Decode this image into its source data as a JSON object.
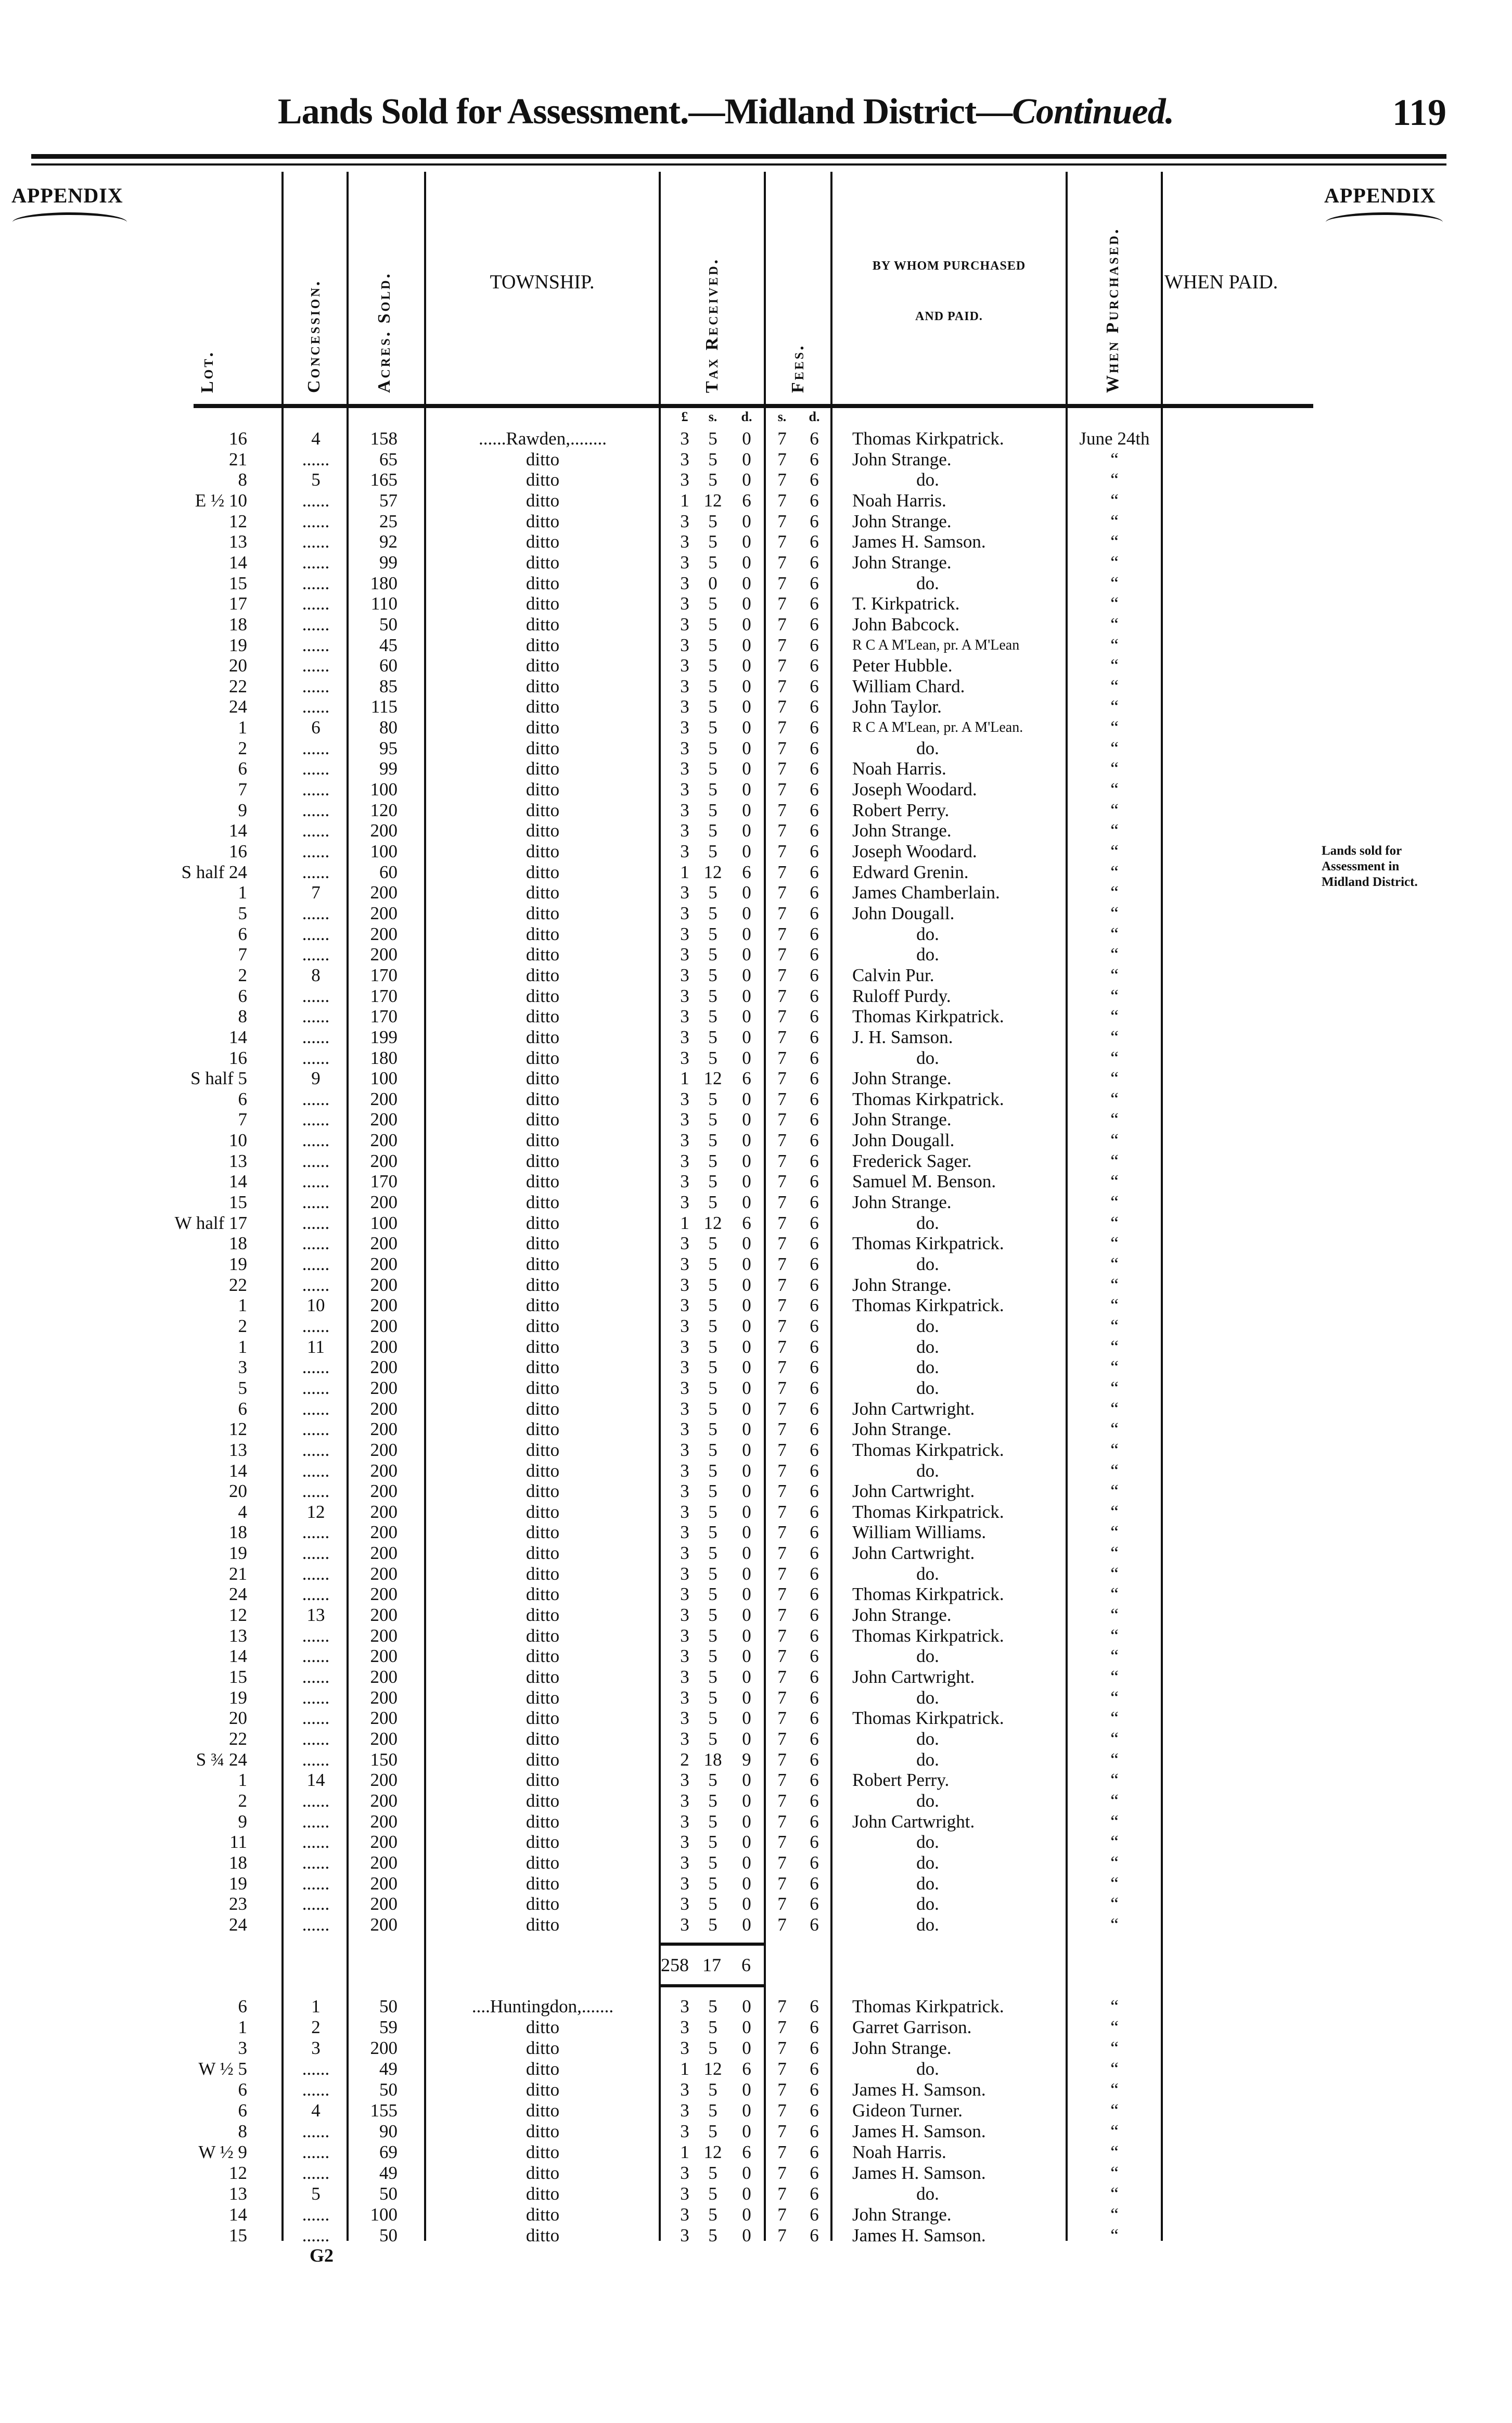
{
  "header": {
    "title_main": "Lands Sold for Assessment.—Midland District—",
    "title_italic": "Continued.",
    "page_number": "119",
    "appendix_left": "APPENDIX",
    "appendix_right": "APPENDIX"
  },
  "side_note": [
    "Lands sold for",
    "Assessment in",
    "Midland District."
  ],
  "columns": {
    "lot": "Lot.",
    "concession": "Concession.",
    "acres": "Acres. Sold.",
    "township": "TOWNSHIP.",
    "tax": "Tax Received.",
    "fees": "Fees.",
    "purchaser_line1": "BY WHOM PURCHASED",
    "purchaser_line2": "AND PAID.",
    "when_purchased": "When Purchased.",
    "when_paid": "WHEN PAID."
  },
  "units": {
    "pounds": "£",
    "shillings": "s.",
    "pence": "d.",
    "fees_s": "s.",
    "fees_d": "d."
  },
  "rawden_rows": [
    [
      "16",
      "4",
      "158",
      "......Rawden,........",
      "3",
      "5",
      "0",
      "7",
      "6",
      "Thomas Kirkpatrick.",
      "June 24th"
    ],
    [
      "21",
      "......",
      "65",
      "ditto",
      "3",
      "5",
      "0",
      "7",
      "6",
      "John Strange.",
      "“"
    ],
    [
      "8",
      "5",
      "165",
      "ditto",
      "3",
      "5",
      "0",
      "7",
      "6",
      "do.",
      "“"
    ],
    [
      "E ½ 10",
      "......",
      "57",
      "ditto",
      "1",
      "12",
      "6",
      "7",
      "6",
      "Noah Harris.",
      "“"
    ],
    [
      "12",
      "......",
      "25",
      "ditto",
      "3",
      "5",
      "0",
      "7",
      "6",
      "John Strange.",
      "“"
    ],
    [
      "13",
      "......",
      "92",
      "ditto",
      "3",
      "5",
      "0",
      "7",
      "6",
      "James H. Samson.",
      "“"
    ],
    [
      "14",
      "......",
      "99",
      "ditto",
      "3",
      "5",
      "0",
      "7",
      "6",
      "John Strange.",
      "“"
    ],
    [
      "15",
      "......",
      "180",
      "ditto",
      "3",
      "0",
      "0",
      "7",
      "6",
      "do.",
      "“"
    ],
    [
      "17",
      "......",
      "110",
      "ditto",
      "3",
      "5",
      "0",
      "7",
      "6",
      "T. Kirkpatrick.",
      "“"
    ],
    [
      "18",
      "......",
      "50",
      "ditto",
      "3",
      "5",
      "0",
      "7",
      "6",
      "John Babcock.",
      "“"
    ],
    [
      "19",
      "......",
      "45",
      "ditto",
      "3",
      "5",
      "0",
      "7",
      "6",
      "R C A M'Lean, pr. A M'Lean",
      "“"
    ],
    [
      "20",
      "......",
      "60",
      "ditto",
      "3",
      "5",
      "0",
      "7",
      "6",
      "Peter Hubble.",
      "“"
    ],
    [
      "22",
      "......",
      "85",
      "ditto",
      "3",
      "5",
      "0",
      "7",
      "6",
      "William Chard.",
      "“"
    ],
    [
      "24",
      "......",
      "115",
      "ditto",
      "3",
      "5",
      "0",
      "7",
      "6",
      "John Taylor.",
      "“"
    ],
    [
      "1",
      "6",
      "80",
      "ditto",
      "3",
      "5",
      "0",
      "7",
      "6",
      "R C A M'Lean, pr. A M'Lean.",
      "“"
    ],
    [
      "2",
      "......",
      "95",
      "ditto",
      "3",
      "5",
      "0",
      "7",
      "6",
      "do.",
      "“"
    ],
    [
      "6",
      "......",
      "99",
      "ditto",
      "3",
      "5",
      "0",
      "7",
      "6",
      "Noah Harris.",
      "“"
    ],
    [
      "7",
      "......",
      "100",
      "ditto",
      "3",
      "5",
      "0",
      "7",
      "6",
      "Joseph Woodard.",
      "“"
    ],
    [
      "9",
      "......",
      "120",
      "ditto",
      "3",
      "5",
      "0",
      "7",
      "6",
      "Robert Perry.",
      "“"
    ],
    [
      "14",
      "......",
      "200",
      "ditto",
      "3",
      "5",
      "0",
      "7",
      "6",
      "John Strange.",
      "“"
    ],
    [
      "16",
      "......",
      "100",
      "ditto",
      "3",
      "5",
      "0",
      "7",
      "6",
      "Joseph Woodard.",
      "“"
    ],
    [
      "S half 24",
      "......",
      "60",
      "ditto",
      "1",
      "12",
      "6",
      "7",
      "6",
      "Edward Grenin.",
      "“"
    ],
    [
      "1",
      "7",
      "200",
      "ditto",
      "3",
      "5",
      "0",
      "7",
      "6",
      "James Chamberlain.",
      "“"
    ],
    [
      "5",
      "......",
      "200",
      "ditto",
      "3",
      "5",
      "0",
      "7",
      "6",
      "John Dougall.",
      "“"
    ],
    [
      "6",
      "......",
      "200",
      "ditto",
      "3",
      "5",
      "0",
      "7",
      "6",
      "do.",
      "“"
    ],
    [
      "7",
      "......",
      "200",
      "ditto",
      "3",
      "5",
      "0",
      "7",
      "6",
      "do.",
      "“"
    ],
    [
      "2",
      "8",
      "170",
      "ditto",
      "3",
      "5",
      "0",
      "7",
      "6",
      "Calvin Pur.",
      "“"
    ],
    [
      "6",
      "......",
      "170",
      "ditto",
      "3",
      "5",
      "0",
      "7",
      "6",
      "Ruloff Purdy.",
      "“"
    ],
    [
      "8",
      "......",
      "170",
      "ditto",
      "3",
      "5",
      "0",
      "7",
      "6",
      "Thomas Kirkpatrick.",
      "“"
    ],
    [
      "14",
      "......",
      "199",
      "ditto",
      "3",
      "5",
      "0",
      "7",
      "6",
      "J. H. Samson.",
      "“"
    ],
    [
      "16",
      "......",
      "180",
      "ditto",
      "3",
      "5",
      "0",
      "7",
      "6",
      "do.",
      "“"
    ],
    [
      "S half 5",
      "9",
      "100",
      "ditto",
      "1",
      "12",
      "6",
      "7",
      "6",
      "John Strange.",
      "“"
    ],
    [
      "6",
      "......",
      "200",
      "ditto",
      "3",
      "5",
      "0",
      "7",
      "6",
      "Thomas Kirkpatrick.",
      "“"
    ],
    [
      "7",
      "......",
      "200",
      "ditto",
      "3",
      "5",
      "0",
      "7",
      "6",
      "John Strange.",
      "“"
    ],
    [
      "10",
      "......",
      "200",
      "ditto",
      "3",
      "5",
      "0",
      "7",
      "6",
      "John Dougall.",
      "“"
    ],
    [
      "13",
      "......",
      "200",
      "ditto",
      "3",
      "5",
      "0",
      "7",
      "6",
      "Frederick Sager.",
      "“"
    ],
    [
      "14",
      "......",
      "170",
      "ditto",
      "3",
      "5",
      "0",
      "7",
      "6",
      "Samuel M. Benson.",
      "“"
    ],
    [
      "15",
      "......",
      "200",
      "ditto",
      "3",
      "5",
      "0",
      "7",
      "6",
      "John Strange.",
      "“"
    ],
    [
      "W half 17",
      "......",
      "100",
      "ditto",
      "1",
      "12",
      "6",
      "7",
      "6",
      "do.",
      "“"
    ],
    [
      "18",
      "......",
      "200",
      "ditto",
      "3",
      "5",
      "0",
      "7",
      "6",
      "Thomas Kirkpatrick.",
      "“"
    ],
    [
      "19",
      "......",
      "200",
      "ditto",
      "3",
      "5",
      "0",
      "7",
      "6",
      "do.",
      "“"
    ],
    [
      "22",
      "......",
      "200",
      "ditto",
      "3",
      "5",
      "0",
      "7",
      "6",
      "John Strange.",
      "“"
    ],
    [
      "1",
      "10",
      "200",
      "ditto",
      "3",
      "5",
      "0",
      "7",
      "6",
      "Thomas Kirkpatrick.",
      "“"
    ],
    [
      "2",
      "......",
      "200",
      "ditto",
      "3",
      "5",
      "0",
      "7",
      "6",
      "do.",
      "“"
    ],
    [
      "1",
      "11",
      "200",
      "ditto",
      "3",
      "5",
      "0",
      "7",
      "6",
      "do.",
      "“"
    ],
    [
      "3",
      "......",
      "200",
      "ditto",
      "3",
      "5",
      "0",
      "7",
      "6",
      "do.",
      "“"
    ],
    [
      "5",
      "......",
      "200",
      "ditto",
      "3",
      "5",
      "0",
      "7",
      "6",
      "do.",
      "“"
    ],
    [
      "6",
      "......",
      "200",
      "ditto",
      "3",
      "5",
      "0",
      "7",
      "6",
      "John Cartwright.",
      "“"
    ],
    [
      "12",
      "......",
      "200",
      "ditto",
      "3",
      "5",
      "0",
      "7",
      "6",
      "John Strange.",
      "“"
    ],
    [
      "13",
      "......",
      "200",
      "ditto",
      "3",
      "5",
      "0",
      "7",
      "6",
      "Thomas Kirkpatrick.",
      "“"
    ],
    [
      "14",
      "......",
      "200",
      "ditto",
      "3",
      "5",
      "0",
      "7",
      "6",
      "do.",
      "“"
    ],
    [
      "20",
      "......",
      "200",
      "ditto",
      "3",
      "5",
      "0",
      "7",
      "6",
      "John Cartwright.",
      "“"
    ],
    [
      "4",
      "12",
      "200",
      "ditto",
      "3",
      "5",
      "0",
      "7",
      "6",
      "Thomas Kirkpatrick.",
      "“"
    ],
    [
      "18",
      "......",
      "200",
      "ditto",
      "3",
      "5",
      "0",
      "7",
      "6",
      "William Williams.",
      "“"
    ],
    [
      "19",
      "......",
      "200",
      "ditto",
      "3",
      "5",
      "0",
      "7",
      "6",
      "John Cartwright.",
      "“"
    ],
    [
      "21",
      "......",
      "200",
      "ditto",
      "3",
      "5",
      "0",
      "7",
      "6",
      "do.",
      "“"
    ],
    [
      "24",
      "......",
      "200",
      "ditto",
      "3",
      "5",
      "0",
      "7",
      "6",
      "Thomas Kirkpatrick.",
      "“"
    ],
    [
      "12",
      "13",
      "200",
      "ditto",
      "3",
      "5",
      "0",
      "7",
      "6",
      "John Strange.",
      "“"
    ],
    [
      "13",
      "......",
      "200",
      "ditto",
      "3",
      "5",
      "0",
      "7",
      "6",
      "Thomas Kirkpatrick.",
      "“"
    ],
    [
      "14",
      "......",
      "200",
      "ditto",
      "3",
      "5",
      "0",
      "7",
      "6",
      "do.",
      "“"
    ],
    [
      "15",
      "......",
      "200",
      "ditto",
      "3",
      "5",
      "0",
      "7",
      "6",
      "John Cartwright.",
      "“"
    ],
    [
      "19",
      "......",
      "200",
      "ditto",
      "3",
      "5",
      "0",
      "7",
      "6",
      "do.",
      "“"
    ],
    [
      "20",
      "......",
      "200",
      "ditto",
      "3",
      "5",
      "0",
      "7",
      "6",
      "Thomas Kirkpatrick.",
      "“"
    ],
    [
      "22",
      "......",
      "200",
      "ditto",
      "3",
      "5",
      "0",
      "7",
      "6",
      "do.",
      "“"
    ],
    [
      "S ¾ 24",
      "......",
      "150",
      "ditto",
      "2",
      "18",
      "9",
      "7",
      "6",
      "do.",
      "“"
    ],
    [
      "1",
      "14",
      "200",
      "ditto",
      "3",
      "5",
      "0",
      "7",
      "6",
      "Robert Perry.",
      "“"
    ],
    [
      "2",
      "......",
      "200",
      "ditto",
      "3",
      "5",
      "0",
      "7",
      "6",
      "do.",
      "“"
    ],
    [
      "9",
      "......",
      "200",
      "ditto",
      "3",
      "5",
      "0",
      "7",
      "6",
      "John Cartwright.",
      "“"
    ],
    [
      "11",
      "......",
      "200",
      "ditto",
      "3",
      "5",
      "0",
      "7",
      "6",
      "do.",
      "“"
    ],
    [
      "18",
      "......",
      "200",
      "ditto",
      "3",
      "5",
      "0",
      "7",
      "6",
      "do.",
      "“"
    ],
    [
      "19",
      "......",
      "200",
      "ditto",
      "3",
      "5",
      "0",
      "7",
      "6",
      "do.",
      "“"
    ],
    [
      "23",
      "......",
      "200",
      "ditto",
      "3",
      "5",
      "0",
      "7",
      "6",
      "do.",
      "“"
    ],
    [
      "24",
      "......",
      "200",
      "ditto",
      "3",
      "5",
      "0",
      "7",
      "6",
      "do.",
      "“"
    ]
  ],
  "rawden_total": {
    "pounds": "258",
    "shillings": "17",
    "pence": "6"
  },
  "huntingdon_rows": [
    [
      "6",
      "1",
      "50",
      "....Huntingdon,.......",
      "3",
      "5",
      "0",
      "7",
      "6",
      "Thomas Kirkpatrick.",
      "“"
    ],
    [
      "1",
      "2",
      "59",
      "ditto",
      "3",
      "5",
      "0",
      "7",
      "6",
      "Garret Garrison.",
      "“"
    ],
    [
      "3",
      "3",
      "200",
      "ditto",
      "3",
      "5",
      "0",
      "7",
      "6",
      "John Strange.",
      "“"
    ],
    [
      "W ½ 5",
      "......",
      "49",
      "ditto",
      "1",
      "12",
      "6",
      "7",
      "6",
      "do.",
      "“"
    ],
    [
      "6",
      "......",
      "50",
      "ditto",
      "3",
      "5",
      "0",
      "7",
      "6",
      "James H. Samson.",
      "“"
    ],
    [
      "6",
      "4",
      "155",
      "ditto",
      "3",
      "5",
      "0",
      "7",
      "6",
      "Gideon Turner.",
      "“"
    ],
    [
      "8",
      "......",
      "90",
      "ditto",
      "3",
      "5",
      "0",
      "7",
      "6",
      "James H. Samson.",
      "“"
    ],
    [
      "W ½ 9",
      "......",
      "69",
      "ditto",
      "1",
      "12",
      "6",
      "7",
      "6",
      "Noah Harris.",
      "“"
    ],
    [
      "12",
      "......",
      "49",
      "ditto",
      "3",
      "5",
      "0",
      "7",
      "6",
      "James H. Samson.",
      "“"
    ],
    [
      "13",
      "5",
      "50",
      "ditto",
      "3",
      "5",
      "0",
      "7",
      "6",
      "do.",
      "“"
    ],
    [
      "14",
      "......",
      "100",
      "ditto",
      "3",
      "5",
      "0",
      "7",
      "6",
      "John Strange.",
      "“"
    ],
    [
      "15",
      "......",
      "50",
      "ditto",
      "3",
      "5",
      "0",
      "7",
      "6",
      "James H. Samson.",
      "“"
    ]
  ],
  "signature_mark": "G2"
}
